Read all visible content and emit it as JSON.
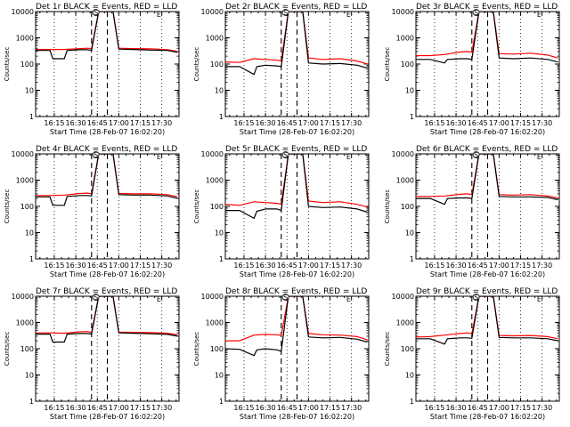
{
  "colors": {
    "events": "#000000",
    "lld": "#ff0000",
    "background": "#ffffff"
  },
  "chart_data": [
    {
      "type": "line",
      "title": "Det 1r BLACK = Events, RED = LLD",
      "ylabel": "Counts/sec",
      "xlabel": "Start Time (28-Feb-07 16:02:20)",
      "y_scale": "log",
      "ylim": [
        1,
        10000
      ],
      "x_ticks": [
        "16:15",
        "16:30",
        "16:45",
        "17:00",
        "17:15",
        "17:30"
      ],
      "y_ticks": [
        "1",
        "10",
        "100",
        "1000",
        "10000"
      ],
      "markers": [
        "S",
        "E"
      ],
      "series": [
        {
          "name": "Events",
          "color": "#000000",
          "x": [
            "16:02",
            "16:12",
            "16:14",
            "16:22",
            "16:24",
            "16:33",
            "16:38",
            "16:41",
            "16:46",
            "16:51",
            "16:56",
            "17:00",
            "17:10",
            "17:22",
            "17:34",
            "17:41"
          ],
          "y": [
            330,
            330,
            160,
            160,
            330,
            350,
            350,
            330,
            10000,
            10000,
            10000,
            370,
            360,
            340,
            330,
            280
          ]
        },
        {
          "name": "LLD",
          "color": "#ff0000",
          "x": [
            "16:02",
            "16:12",
            "16:22",
            "16:33",
            "16:38",
            "16:41",
            "16:46",
            "16:51",
            "16:56",
            "17:00",
            "17:10",
            "17:22",
            "17:34",
            "17:41"
          ],
          "y": [
            360,
            360,
            360,
            390,
            400,
            390,
            10000,
            10000,
            10000,
            400,
            390,
            380,
            350,
            300
          ]
        }
      ]
    },
    {
      "type": "line",
      "title": "Det 2r BLACK = Events, RED = LLD",
      "ylabel": "Counts/sec",
      "xlabel": "Start Time (28-Feb-07 16:02:20)",
      "y_scale": "log",
      "ylim": [
        1,
        10000
      ],
      "x_ticks": [
        "16:15",
        "16:30",
        "16:45",
        "17:00",
        "17:15",
        "17:30"
      ],
      "y_ticks": [
        "1",
        "10",
        "100",
        "1000",
        "10000"
      ],
      "markers": [
        "S",
        "E"
      ],
      "series": [
        {
          "name": "Events",
          "color": "#000000",
          "x": [
            "16:02",
            "16:12",
            "16:22",
            "16:24",
            "16:30",
            "16:38",
            "16:41",
            "16:46",
            "16:52",
            "16:56",
            "17:00",
            "17:10",
            "17:22",
            "17:34",
            "17:41"
          ],
          "y": [
            80,
            80,
            40,
            80,
            90,
            85,
            80,
            10000,
            10000,
            10000,
            110,
            100,
            105,
            90,
            70
          ]
        },
        {
          "name": "LLD",
          "color": "#ff0000",
          "x": [
            "16:02",
            "16:12",
            "16:22",
            "16:30",
            "16:38",
            "16:41",
            "16:46",
            "16:52",
            "16:56",
            "17:00",
            "17:10",
            "17:22",
            "17:34",
            "17:41"
          ],
          "y": [
            120,
            115,
            160,
            150,
            140,
            130,
            10000,
            10000,
            10000,
            170,
            150,
            160,
            130,
            100
          ]
        }
      ]
    },
    {
      "type": "line",
      "title": "Det 3r BLACK = Events, RED = LLD",
      "ylabel": "Counts/sec",
      "xlabel": "Start Time (28-Feb-07 16:02:20)",
      "y_scale": "log",
      "ylim": [
        1,
        10000
      ],
      "x_ticks": [
        "16:15",
        "16:30",
        "16:45",
        "17:00",
        "17:15",
        "17:30"
      ],
      "y_ticks": [
        "1",
        "10",
        "100",
        "1000",
        "10000"
      ],
      "markers": [
        "S",
        "E"
      ],
      "series": [
        {
          "name": "Events",
          "color": "#000000",
          "x": [
            "16:02",
            "16:12",
            "16:22",
            "16:24",
            "16:33",
            "16:38",
            "16:41",
            "16:46",
            "16:51",
            "16:56",
            "17:00",
            "17:10",
            "17:22",
            "17:34",
            "17:41"
          ],
          "y": [
            150,
            150,
            110,
            150,
            160,
            160,
            150,
            10000,
            10000,
            10000,
            170,
            160,
            170,
            150,
            120
          ]
        },
        {
          "name": "LLD",
          "color": "#ff0000",
          "x": [
            "16:02",
            "16:12",
            "16:22",
            "16:33",
            "16:38",
            "16:41",
            "16:46",
            "16:51",
            "16:56",
            "17:00",
            "17:10",
            "17:22",
            "17:34",
            "17:41"
          ],
          "y": [
            210,
            210,
            230,
            290,
            300,
            280,
            10000,
            10000,
            10000,
            250,
            240,
            260,
            220,
            170
          ]
        }
      ]
    },
    {
      "type": "line",
      "title": "Det 4r BLACK = Events, RED = LLD",
      "ylabel": "Counts/sec",
      "xlabel": "Start Time (28-Feb-07 16:02:20)",
      "y_scale": "log",
      "ylim": [
        1,
        10000
      ],
      "x_ticks": [
        "16:15",
        "16:30",
        "16:45",
        "17:00",
        "17:15",
        "17:30"
      ],
      "y_ticks": [
        "1",
        "10",
        "100",
        "1000",
        "10000"
      ],
      "markers": [
        "S",
        "E"
      ],
      "series": [
        {
          "name": "Events",
          "color": "#000000",
          "x": [
            "16:02",
            "16:12",
            "16:14",
            "16:22",
            "16:24",
            "16:33",
            "16:38",
            "16:41",
            "16:46",
            "16:51",
            "16:56",
            "17:00",
            "17:10",
            "17:22",
            "17:34",
            "17:41"
          ],
          "y": [
            230,
            230,
            110,
            110,
            240,
            260,
            260,
            250,
            10000,
            10000,
            10000,
            280,
            270,
            270,
            250,
            200
          ]
        },
        {
          "name": "LLD",
          "color": "#ff0000",
          "x": [
            "16:02",
            "16:12",
            "16:22",
            "16:33",
            "16:38",
            "16:41",
            "16:46",
            "16:51",
            "16:56",
            "17:00",
            "17:10",
            "17:22",
            "17:34",
            "17:41"
          ],
          "y": [
            260,
            260,
            270,
            310,
            320,
            300,
            10000,
            10000,
            10000,
            310,
            300,
            300,
            280,
            230
          ]
        }
      ]
    },
    {
      "type": "line",
      "title": "Det 5r BLACK = Events, RED = LLD",
      "ylabel": "Counts/sec",
      "xlabel": "Start Time (28-Feb-07 16:02:20)",
      "y_scale": "log",
      "ylim": [
        1,
        10000
      ],
      "x_ticks": [
        "16:15",
        "16:30",
        "16:45",
        "17:00",
        "17:15",
        "17:30"
      ],
      "y_ticks": [
        "1",
        "10",
        "100",
        "1000",
        "10000"
      ],
      "markers": [
        "S",
        "E"
      ],
      "series": [
        {
          "name": "Events",
          "color": "#000000",
          "x": [
            "16:02",
            "16:12",
            "16:22",
            "16:24",
            "16:30",
            "16:38",
            "16:41",
            "16:46",
            "16:52",
            "16:56",
            "17:00",
            "17:10",
            "17:22",
            "17:34",
            "17:41"
          ],
          "y": [
            70,
            70,
            35,
            65,
            80,
            80,
            70,
            10000,
            10000,
            10000,
            100,
            90,
            95,
            80,
            60
          ]
        },
        {
          "name": "LLD",
          "color": "#ff0000",
          "x": [
            "16:02",
            "16:12",
            "16:22",
            "16:30",
            "16:38",
            "16:41",
            "16:46",
            "16:52",
            "16:56",
            "17:00",
            "17:10",
            "17:22",
            "17:34",
            "17:41"
          ],
          "y": [
            120,
            110,
            150,
            140,
            130,
            120,
            10000,
            10000,
            10000,
            160,
            140,
            150,
            120,
            95
          ]
        }
      ]
    },
    {
      "type": "line",
      "title": "Det 6r BLACK = Events, RED = LLD",
      "ylabel": "Counts/sec",
      "xlabel": "Start Time (28-Feb-07 16:02:20)",
      "y_scale": "log",
      "ylim": [
        1,
        10000
      ],
      "x_ticks": [
        "16:15",
        "16:30",
        "16:45",
        "17:00",
        "17:15",
        "17:30"
      ],
      "y_ticks": [
        "1",
        "10",
        "100",
        "1000",
        "10000"
      ],
      "markers": [
        "S",
        "E"
      ],
      "series": [
        {
          "name": "Events",
          "color": "#000000",
          "x": [
            "16:02",
            "16:12",
            "16:22",
            "16:24",
            "16:33",
            "16:38",
            "16:41",
            "16:46",
            "16:51",
            "16:56",
            "17:00",
            "17:10",
            "17:22",
            "17:34",
            "17:41"
          ],
          "y": [
            200,
            200,
            120,
            200,
            210,
            210,
            200,
            10000,
            10000,
            10000,
            240,
            230,
            230,
            220,
            180
          ]
        },
        {
          "name": "LLD",
          "color": "#ff0000",
          "x": [
            "16:02",
            "16:12",
            "16:22",
            "16:33",
            "16:38",
            "16:41",
            "16:46",
            "16:51",
            "16:56",
            "17:00",
            "17:10",
            "17:22",
            "17:34",
            "17:41"
          ],
          "y": [
            240,
            240,
            250,
            290,
            300,
            280,
            10000,
            10000,
            10000,
            280,
            270,
            280,
            250,
            210
          ]
        }
      ]
    },
    {
      "type": "line",
      "title": "Det 7r BLACK = Events, RED = LLD",
      "ylabel": "Counts/sec",
      "xlabel": "Start Time (28-Feb-07 16:02:20)",
      "y_scale": "log",
      "ylim": [
        1,
        10000
      ],
      "x_ticks": [
        "16:15",
        "16:30",
        "16:45",
        "17:00",
        "17:15",
        "17:30"
      ],
      "y_ticks": [
        "1",
        "10",
        "100",
        "1000",
        "10000"
      ],
      "markers": [
        "S",
        "E"
      ],
      "series": [
        {
          "name": "Events",
          "color": "#000000",
          "x": [
            "16:02",
            "16:12",
            "16:14",
            "16:22",
            "16:24",
            "16:33",
            "16:38",
            "16:41",
            "16:46",
            "16:51",
            "16:56",
            "17:00",
            "17:10",
            "17:22",
            "17:34",
            "17:41"
          ],
          "y": [
            360,
            360,
            180,
            180,
            360,
            380,
            380,
            360,
            10000,
            10000,
            10000,
            400,
            390,
            370,
            350,
            300
          ]
        },
        {
          "name": "LLD",
          "color": "#ff0000",
          "x": [
            "16:02",
            "16:12",
            "16:22",
            "16:33",
            "16:38",
            "16:41",
            "16:46",
            "16:51",
            "16:56",
            "17:00",
            "17:10",
            "17:22",
            "17:34",
            "17:41"
          ],
          "y": [
            400,
            400,
            390,
            440,
            450,
            420,
            10000,
            10000,
            10000,
            430,
            420,
            410,
            390,
            340
          ]
        }
      ]
    },
    {
      "type": "line",
      "title": "Det 8r BLACK = Events, RED = LLD",
      "ylabel": "Counts/sec",
      "xlabel": "Start Time (28-Feb-07 16:02:20)",
      "y_scale": "log",
      "ylim": [
        1,
        10000
      ],
      "x_ticks": [
        "16:15",
        "16:30",
        "16:45",
        "17:00",
        "17:15",
        "17:30"
      ],
      "y_ticks": [
        "1",
        "10",
        "100",
        "1000",
        "10000"
      ],
      "markers": [
        "S",
        "E"
      ],
      "series": [
        {
          "name": "Events",
          "color": "#000000",
          "x": [
            "16:02",
            "16:12",
            "16:22",
            "16:24",
            "16:30",
            "16:38",
            "16:41",
            "16:46",
            "16:52",
            "16:56",
            "17:00",
            "17:10",
            "17:22",
            "17:34",
            "17:41"
          ],
          "y": [
            100,
            95,
            55,
            90,
            100,
            90,
            80,
            10000,
            10000,
            10000,
            280,
            260,
            270,
            230,
            180
          ]
        },
        {
          "name": "LLD",
          "color": "#ff0000",
          "x": [
            "16:02",
            "16:12",
            "16:22",
            "16:30",
            "16:38",
            "16:41",
            "16:46",
            "16:52",
            "16:56",
            "17:00",
            "17:10",
            "17:22",
            "17:34",
            "17:41"
          ],
          "y": [
            200,
            200,
            330,
            350,
            340,
            320,
            10000,
            10000,
            10000,
            380,
            340,
            330,
            290,
            220
          ]
        }
      ]
    },
    {
      "type": "line",
      "title": "Det 9r BLACK = Events, RED = LLD",
      "ylabel": "Counts/sec",
      "xlabel": "Start Time (28-Feb-07 16:02:20)",
      "y_scale": "log",
      "ylim": [
        1,
        10000
      ],
      "x_ticks": [
        "16:15",
        "16:30",
        "16:45",
        "17:00",
        "17:15",
        "17:30"
      ],
      "y_ticks": [
        "1",
        "10",
        "100",
        "1000",
        "10000"
      ],
      "markers": [
        "S",
        "E"
      ],
      "series": [
        {
          "name": "Events",
          "color": "#000000",
          "x": [
            "16:02",
            "16:12",
            "16:22",
            "16:24",
            "16:33",
            "16:38",
            "16:41",
            "16:46",
            "16:51",
            "16:56",
            "17:00",
            "17:10",
            "17:22",
            "17:34",
            "17:41"
          ],
          "y": [
            240,
            240,
            150,
            240,
            260,
            260,
            250,
            10000,
            10000,
            10000,
            270,
            260,
            260,
            240,
            200
          ]
        },
        {
          "name": "LLD",
          "color": "#ff0000",
          "x": [
            "16:02",
            "16:12",
            "16:22",
            "16:33",
            "16:38",
            "16:41",
            "16:46",
            "16:51",
            "16:56",
            "17:00",
            "17:10",
            "17:22",
            "17:34",
            "17:41"
          ],
          "y": [
            280,
            290,
            330,
            380,
            400,
            370,
            10000,
            10000,
            10000,
            320,
            310,
            320,
            290,
            240
          ]
        }
      ]
    }
  ]
}
